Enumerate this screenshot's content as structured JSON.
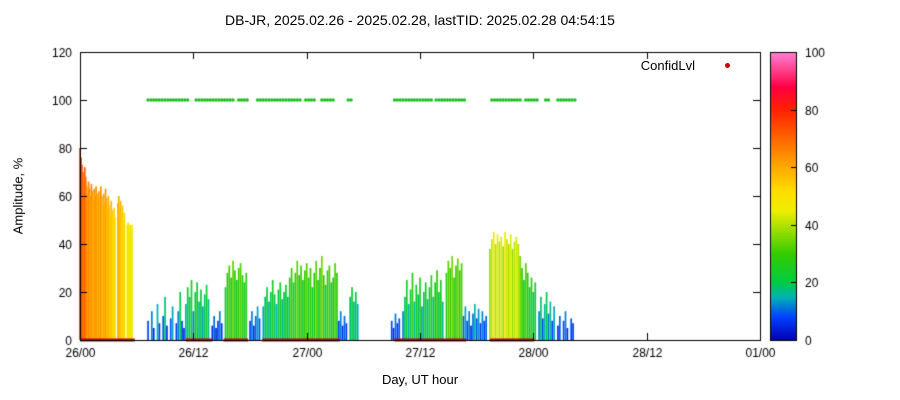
{
  "title": "DB-JR, 2025.02.26 - 2025.02.28, lastTID: 2025.02.28 04:54:15",
  "legend": {
    "label": "ConfidLvl",
    "marker_color": "#cc0000"
  },
  "axes": {
    "xlabel": "Day, UT hour",
    "ylabel": "Amplitude, %",
    "x_range_hours": [
      0,
      72
    ],
    "y_range": [
      0,
      120
    ],
    "x_ticks": [
      {
        "h": 0,
        "label": "26/00"
      },
      {
        "h": 12,
        "label": "26/12"
      },
      {
        "h": 24,
        "label": "27/00"
      },
      {
        "h": 36,
        "label": "27/12"
      },
      {
        "h": 48,
        "label": "28/00"
      },
      {
        "h": 60,
        "label": "28/12"
      },
      {
        "h": 72,
        "label": "01/00"
      }
    ],
    "y_ticks": [
      0,
      20,
      40,
      60,
      80,
      100,
      120
    ],
    "grid": false
  },
  "colorbar": {
    "range": [
      0,
      100
    ],
    "ticks": [
      0,
      20,
      40,
      60,
      80,
      100
    ],
    "stops": [
      [
        0,
        "#0000b3"
      ],
      [
        8,
        "#0040ff"
      ],
      [
        15,
        "#00b3b3"
      ],
      [
        20,
        "#00cc44"
      ],
      [
        30,
        "#33cc00"
      ],
      [
        38,
        "#99dd00"
      ],
      [
        45,
        "#eeee00"
      ],
      [
        52,
        "#ffdd00"
      ],
      [
        60,
        "#ffaa00"
      ],
      [
        70,
        "#ff6600"
      ],
      [
        80,
        "#ff2200"
      ],
      [
        88,
        "#ff0044"
      ],
      [
        100,
        "#ff80d5"
      ]
    ]
  },
  "chart_data": {
    "type": "bar",
    "x_unit": "hours since 2025-02-26 00:00 UT",
    "note": "impulse-style amplitude bars colored by amplitude value via colorbar palette",
    "segments": [
      {
        "start": 0.0,
        "step": 0.1,
        "amps": [
          80,
          76,
          73,
          70,
          66,
          72,
          68,
          64,
          61,
          66,
          63,
          60,
          65,
          62,
          58,
          63,
          60,
          64,
          61,
          59
        ]
      },
      {
        "start": 2.0,
        "step": 0.1,
        "amps": [
          62,
          58,
          64,
          60,
          56,
          61,
          57,
          63,
          59,
          55,
          60,
          56,
          52,
          58,
          54,
          50,
          55,
          51
        ]
      },
      {
        "start": 4.0,
        "step": 0.1,
        "amps": [
          57,
          60,
          55,
          58,
          52,
          56,
          50,
          53
        ]
      },
      {
        "start": 5.0,
        "step": 0.1,
        "amps": [
          48,
          49,
          47,
          48,
          46,
          48
        ]
      },
      {
        "start": 7.2,
        "step": 0.2,
        "amps": [
          8,
          0,
          12,
          5,
          0,
          15,
          7,
          0,
          10,
          18,
          6,
          0,
          9,
          14,
          0,
          7,
          12,
          20,
          8,
          5
        ]
      },
      {
        "start": 11.2,
        "step": 0.2,
        "amps": [
          15,
          22,
          18,
          25,
          12,
          20,
          24,
          16,
          21,
          14,
          19,
          23,
          17
        ]
      },
      {
        "start": 14.0,
        "step": 0.2,
        "amps": [
          6,
          10,
          5,
          8,
          12,
          7
        ]
      },
      {
        "start": 15.4,
        "step": 0.2,
        "amps": [
          22,
          28,
          31,
          26,
          33,
          29,
          25,
          30,
          32,
          27,
          24,
          28
        ]
      },
      {
        "start": 18.0,
        "step": 0.2,
        "amps": [
          8,
          12,
          6,
          10,
          14,
          9
        ]
      },
      {
        "start": 19.4,
        "step": 0.2,
        "amps": [
          14,
          18,
          22,
          16,
          20,
          25,
          19,
          15,
          21,
          24,
          17,
          20,
          23,
          18
        ]
      },
      {
        "start": 22.2,
        "step": 0.2,
        "amps": [
          26,
          30,
          24,
          28,
          33,
          27,
          31,
          25,
          29,
          32,
          26,
          30
        ]
      },
      {
        "start": 24.6,
        "step": 0.2,
        "amps": [
          22,
          28,
          33,
          25,
          30,
          35,
          27,
          23,
          29,
          31,
          24,
          26,
          32,
          28
        ]
      },
      {
        "start": 27.4,
        "step": 0.2,
        "amps": [
          8,
          12,
          6,
          10,
          7
        ]
      },
      {
        "start": 28.6,
        "step": 0.2,
        "amps": [
          18,
          22,
          16,
          20,
          15
        ]
      },
      {
        "start": 33.0,
        "step": 0.2,
        "amps": [
          8,
          5,
          11,
          7,
          9
        ]
      },
      {
        "start": 34.2,
        "step": 0.2,
        "amps": [
          12,
          18,
          25,
          15,
          21,
          28,
          16,
          23,
          19,
          26,
          14,
          20,
          24,
          17
        ]
      },
      {
        "start": 37.0,
        "step": 0.2,
        "amps": [
          22,
          27,
          18,
          24,
          29,
          20,
          25,
          16
        ]
      },
      {
        "start": 38.8,
        "step": 0.2,
        "amps": [
          28,
          33,
          30,
          35,
          26,
          31,
          34,
          29,
          32
        ]
      },
      {
        "start": 40.6,
        "step": 0.2,
        "amps": [
          10,
          14,
          8,
          12,
          6,
          11,
          15,
          9,
          13,
          7,
          12,
          8,
          10
        ]
      },
      {
        "start": 43.4,
        "step": 0.2,
        "amps": [
          38,
          42,
          45,
          40,
          44,
          41,
          43,
          39,
          45,
          42,
          40,
          44,
          38,
          41,
          43,
          40
        ]
      },
      {
        "start": 46.6,
        "step": 0.2,
        "amps": [
          35,
          30,
          25,
          32,
          28,
          22,
          26,
          20,
          24
        ]
      },
      {
        "start": 48.6,
        "step": 0.2,
        "amps": [
          12,
          18,
          9,
          15,
          20,
          11,
          16,
          8,
          14
        ]
      },
      {
        "start": 50.6,
        "step": 0.2,
        "amps": [
          6,
          10,
          0,
          8,
          12,
          5,
          0,
          9,
          7
        ]
      }
    ],
    "confidence_dot_y": 100,
    "confidence_color": "#1fbf1f",
    "confidence_segments": [
      [
        7.2,
        11.4
      ],
      [
        12.3,
        16.3
      ],
      [
        16.8,
        17.8
      ],
      [
        18.8,
        23.5
      ],
      [
        23.9,
        25.0
      ],
      [
        25.6,
        26.9
      ],
      [
        28.4,
        28.7
      ],
      [
        33.3,
        37.3
      ],
      [
        37.7,
        40.9
      ],
      [
        43.6,
        46.6
      ],
      [
        47.2,
        48.5
      ],
      [
        49.3,
        49.7
      ],
      [
        50.6,
        52.5
      ]
    ],
    "baseline_marker_y": 0,
    "baseline_color": "#cc0000",
    "baseline_segments": [
      [
        0,
        5.8
      ],
      [
        11.2,
        14.0
      ],
      [
        15.2,
        17.8
      ],
      [
        19.3,
        27.5
      ],
      [
        33.3,
        40.9
      ],
      [
        43.4,
        48.1
      ]
    ]
  }
}
